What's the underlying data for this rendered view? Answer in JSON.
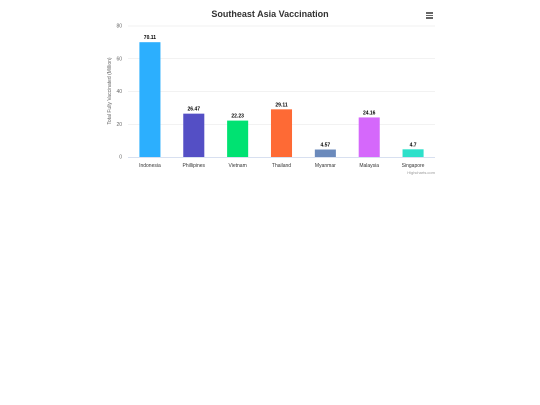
{
  "chart_data": {
    "type": "bar",
    "title": "Southeast Asia Vaccination",
    "ylabel": "Total Fully Vaccinated (Million)",
    "xlabel": "",
    "ylim": [
      0,
      80
    ],
    "yticks": [
      0,
      20,
      40,
      60,
      80
    ],
    "grid": true,
    "categories": [
      "Indonesia",
      "Phillipines",
      "Vietnam",
      "Thailand",
      "Myanmar",
      "Malaysia",
      "Singapore"
    ],
    "values": [
      70.11,
      26.47,
      22.23,
      29.11,
      4.57,
      24.16,
      4.7
    ],
    "data_labels": [
      "70.11",
      "26.47",
      "22.23",
      "29.11",
      "4.57",
      "24.16",
      "4.7"
    ],
    "colors": [
      "#2caffe",
      "#544fc5",
      "#00e272",
      "#fe6a35",
      "#6b8abc",
      "#d568fb",
      "#2ee0ca"
    ]
  },
  "credits": "Highcharts.com",
  "menu_icon": "hamburger-menu-icon"
}
